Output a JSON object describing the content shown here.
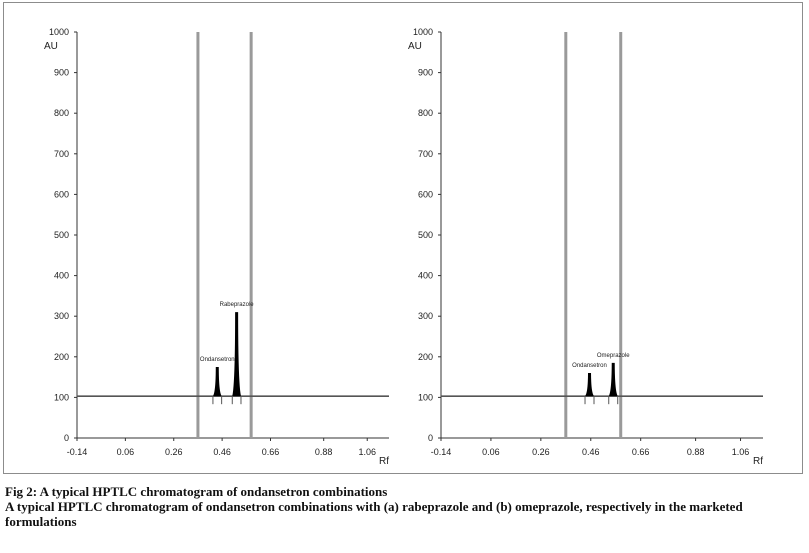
{
  "chart_data": [
    {
      "type": "line",
      "panel": "a",
      "ylabel": "AU",
      "xlabel": "Rf",
      "xlim": [
        -0.14,
        1.15
      ],
      "ylim": [
        0,
        1000
      ],
      "xticks": [
        -0.14,
        0.06,
        0.26,
        0.46,
        0.66,
        0.88,
        1.06
      ],
      "xtick_labels": [
        "-0.14",
        "0.06",
        "0.26",
        "0.46",
        "0.66",
        "0.88",
        "1.06"
      ],
      "yticks": [
        0,
        100,
        200,
        300,
        400,
        500,
        600,
        700,
        800,
        900,
        1000
      ],
      "ytick_labels": [
        "0",
        "100",
        "200",
        "300",
        "400",
        "500",
        "600",
        "700",
        "800",
        "900",
        "1000"
      ],
      "baseline": 103,
      "vertical_lines": [
        0.36,
        0.58
      ],
      "peaks": [
        {
          "name": "Ondansetron",
          "rf": 0.44,
          "height": 175,
          "half_width": 0.018
        },
        {
          "name": "Rabeprazole",
          "rf": 0.52,
          "height": 310,
          "half_width": 0.018
        }
      ]
    },
    {
      "type": "line",
      "panel": "b",
      "ylabel": "AU",
      "xlabel": "Rf",
      "xlim": [
        -0.14,
        1.15
      ],
      "ylim": [
        0,
        1000
      ],
      "xticks": [
        -0.14,
        0.06,
        0.26,
        0.46,
        0.66,
        0.88,
        1.06
      ],
      "xtick_labels": [
        "-0.14",
        "0.06",
        "0.26",
        "0.46",
        "0.66",
        "0.88",
        "1.06"
      ],
      "yticks": [
        0,
        100,
        200,
        300,
        400,
        500,
        600,
        700,
        800,
        900,
        1000
      ],
      "ytick_labels": [
        "0",
        "100",
        "200",
        "300",
        "400",
        "500",
        "600",
        "700",
        "800",
        "900",
        "1000"
      ],
      "baseline": 103,
      "vertical_lines": [
        0.36,
        0.58
      ],
      "peaks": [
        {
          "name": "Ondansetron",
          "rf": 0.455,
          "height": 160,
          "half_width": 0.018
        },
        {
          "name": "Omeprazole",
          "rf": 0.55,
          "height": 185,
          "half_width": 0.018
        }
      ]
    }
  ],
  "caption": {
    "title": "Fig 2: A typical HPTLC chromatogram of ondansetron combinations",
    "description": "A typical HPTLC chromatogram of ondansetron combinations with (a) rabeprazole and (b) omeprazole, respectively in the marketed formulations"
  },
  "colors": {
    "axis": "#333333",
    "vline": "#9a9a9a",
    "peak": "#000000",
    "baseline": "#555555"
  }
}
